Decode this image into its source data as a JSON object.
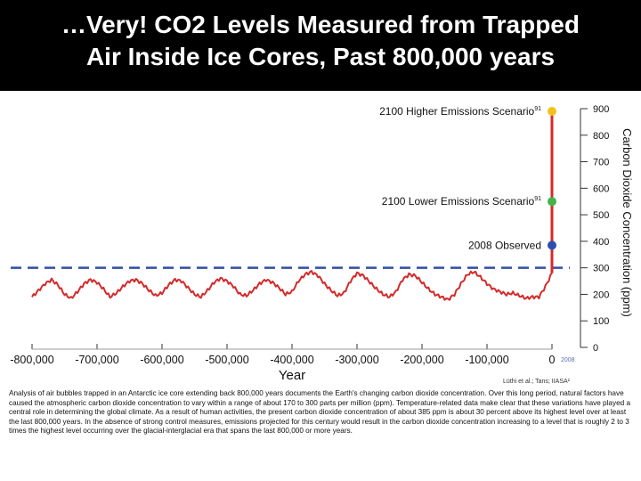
{
  "title": {
    "line1": "…Very! CO2 Levels Measured from Trapped",
    "line2": "Air Inside Ice Cores, Past 800,000 years"
  },
  "colors": {
    "background": "#000000",
    "title_text": "#ffffff",
    "series": "#d42a2a",
    "reference_line": "#2f4fa8",
    "higher_point": "#f2c21b",
    "lower_point": "#43b44a",
    "observed_point": "#2a4fb0"
  },
  "chart_data": {
    "type": "line",
    "xlabel": "Year",
    "ylabel": "Carbon Dioxide Concentration (ppm)",
    "xlim": [
      -800000,
      0
    ],
    "ylim": [
      0,
      900
    ],
    "x_ticks": [
      -800000,
      -700000,
      -600000,
      -500000,
      -400000,
      -300000,
      -200000,
      -100000,
      0
    ],
    "x_tick_labels": [
      "-800,000",
      "-700,000",
      "-600,000",
      "-500,000",
      "-400,000",
      "-300,000",
      "-200,000",
      "-100,000",
      "0"
    ],
    "y_ticks": [
      0,
      100,
      200,
      300,
      400,
      500,
      600,
      700,
      800,
      900
    ],
    "y_tick_labels": [
      "0",
      "100",
      "200",
      "300",
      "400",
      "500",
      "600",
      "700",
      "800",
      "900"
    ],
    "year_2008_label": "2008",
    "reference_line_ppm": 300,
    "series": [
      {
        "x": [
          -800000,
          -790000,
          -780000,
          -770000,
          -760000,
          -750000,
          -740000,
          -730000,
          -720000,
          -710000,
          -700000,
          -690000,
          -680000,
          -670000,
          -660000,
          -650000,
          -640000,
          -630000,
          -620000,
          -610000,
          -600000,
          -590000,
          -580000,
          -570000,
          -560000,
          -550000,
          -540000,
          -530000,
          -520000,
          -510000,
          -500000,
          -490000,
          -480000,
          -470000,
          -460000,
          -450000,
          -440000,
          -430000,
          -420000,
          -410000,
          -400000,
          -390000,
          -380000,
          -370000,
          -360000,
          -350000,
          -340000,
          -330000,
          -320000,
          -310000,
          -300000,
          -290000,
          -280000,
          -270000,
          -260000,
          -250000,
          -240000,
          -230000,
          -220000,
          -210000,
          -200000,
          -190000,
          -180000,
          -170000,
          -160000,
          -150000,
          -140000,
          -130000,
          -120000,
          -110000,
          -100000,
          -90000,
          -80000,
          -70000,
          -60000,
          -50000,
          -40000,
          -30000,
          -20000,
          -10000,
          0
        ],
        "values": [
          190,
          215,
          240,
          255,
          235,
          200,
          185,
          210,
          240,
          255,
          245,
          220,
          190,
          205,
          230,
          250,
          255,
          240,
          215,
          195,
          205,
          235,
          255,
          250,
          225,
          200,
          190,
          215,
          245,
          260,
          250,
          230,
          200,
          195,
          215,
          240,
          255,
          245,
          225,
          200,
          210,
          250,
          275,
          285,
          270,
          240,
          215,
          195,
          205,
          250,
          280,
          270,
          245,
          220,
          200,
          190,
          210,
          255,
          275,
          270,
          245,
          220,
          200,
          190,
          180,
          200,
          240,
          275,
          285,
          265,
          240,
          220,
          210,
          200,
          205,
          195,
          185,
          190,
          190,
          230,
          280
        ]
      }
    ],
    "annotations": [
      {
        "label": "2100 Higher Emissions Scenario",
        "superscript": "91",
        "x": 0,
        "y": 890
      },
      {
        "label": "2100 Lower Emissions Scenario",
        "superscript": "91",
        "x": 0,
        "y": 550
      },
      {
        "label": "2008 Observed",
        "superscript": "",
        "x": 0,
        "y": 385
      }
    ],
    "source": "Lüthi et al.; Tans; IIASA²",
    "grid": false,
    "legend": "none"
  },
  "caption": "Analysis of air bubbles trapped in an Antarctic ice core extending back 800,000 years documents the Earth's changing carbon dioxide concentration. Over this long period, natural factors have caused the atmospheric carbon dioxide concentration to vary within a range of about 170 to 300 parts per million (ppm). Temperature-related data make clear that these variations have played a central role in determining the global climate. As a result of human activities, the present carbon dioxide concentration of about 385 ppm is about 30 percent above its highest level over at least the last 800,000 years. In the absence of strong control measures, emissions projected for this century would result in the carbon dioxide concentration increasing to a level that is roughly 2 to 3 times the highest level occurring over the glacial-interglacial era that spans the last 800,000 or more years."
}
